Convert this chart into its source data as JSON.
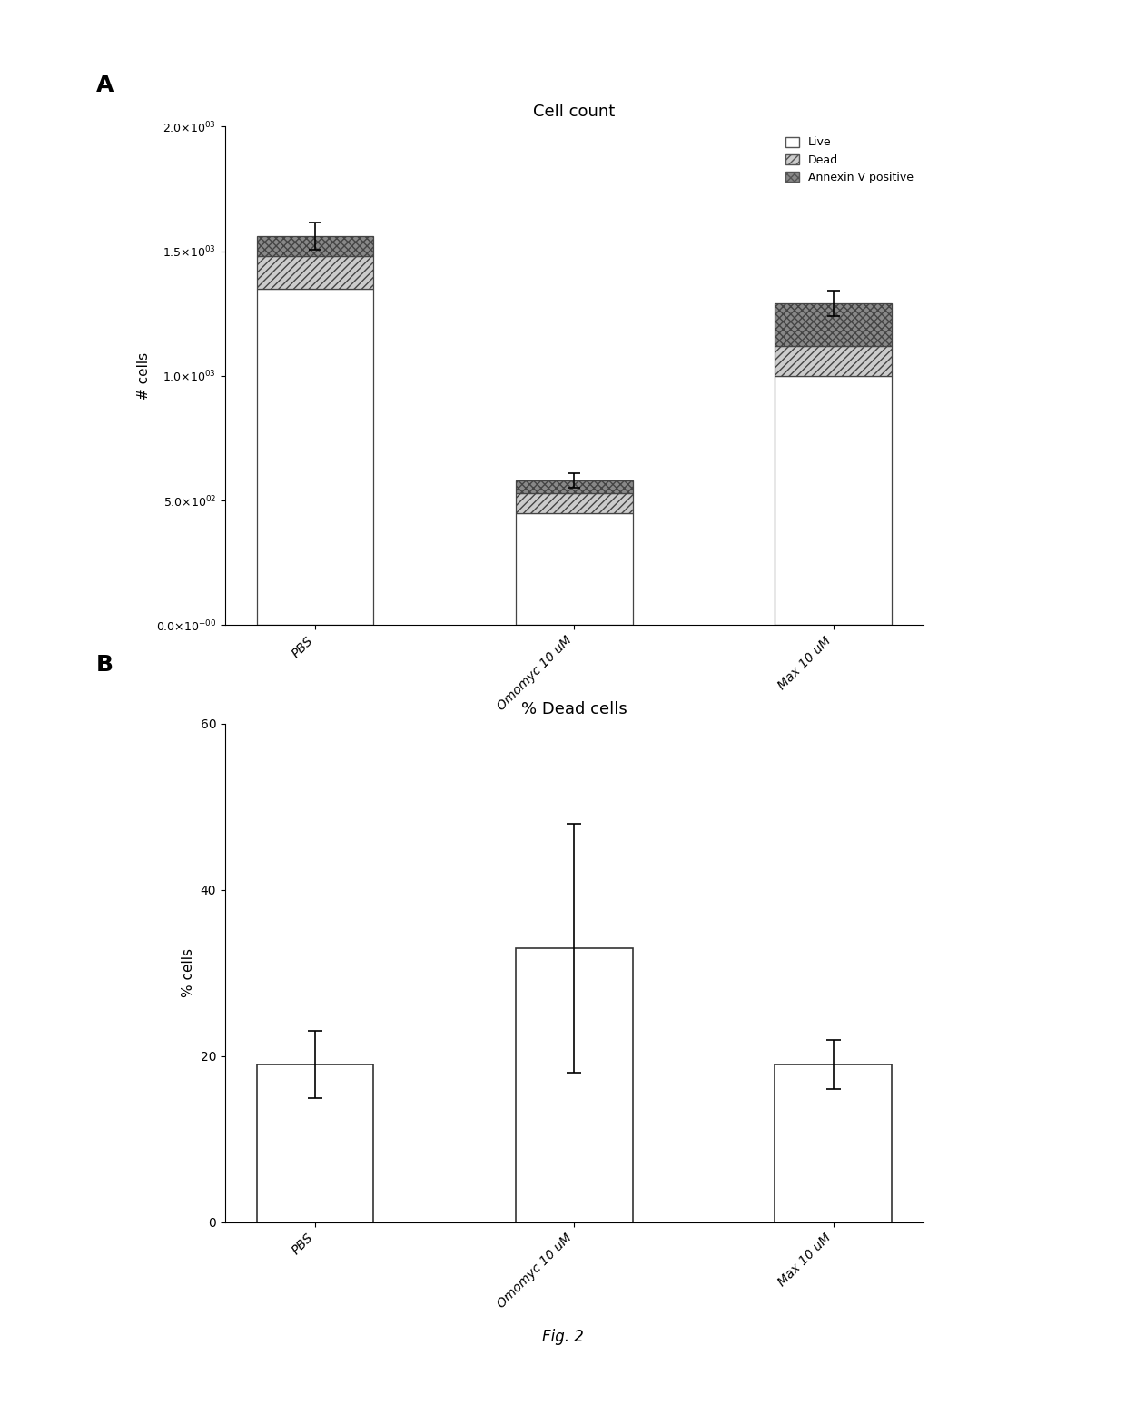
{
  "panel_A": {
    "title": "Cell count",
    "ylabel": "# cells",
    "categories": [
      "PBS",
      "Omomyc 10 uM",
      "Max 10 uM"
    ],
    "live": [
      1350,
      450,
      1000
    ],
    "dead": [
      130,
      80,
      120
    ],
    "annexin": [
      80,
      50,
      170
    ],
    "total_err": [
      55,
      30,
      50
    ],
    "ylim": [
      0,
      2000
    ],
    "yticks": [
      0,
      500,
      1000,
      1500,
      2000
    ],
    "bar_width": 0.45,
    "legend_labels": [
      "Live",
      "Dead",
      "Annexin V positive"
    ]
  },
  "panel_B": {
    "title": "% Dead cells",
    "ylabel": "% cells",
    "categories": [
      "PBS",
      "Omomyc 10 uM",
      "Max 10 uM"
    ],
    "values": [
      19,
      33,
      19
    ],
    "errors": [
      4,
      15,
      3
    ],
    "ylim": [
      0,
      60
    ],
    "yticks": [
      0,
      20,
      40,
      60
    ],
    "bar_color": "#ffffff",
    "bar_edgecolor": "#333333",
    "bar_width": 0.45
  },
  "fig_label": "Fig. 2",
  "background_color": "#ffffff"
}
